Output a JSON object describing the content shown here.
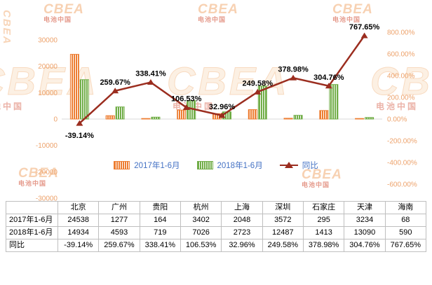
{
  "watermark": {
    "latin": "CBEA",
    "cn": "电池中国"
  },
  "chart_data": {
    "type": "bar+line",
    "categories": [
      "北京",
      "广州",
      "贵阳",
      "杭州",
      "上海",
      "深圳",
      "石家庄",
      "天津",
      "海南"
    ],
    "series": [
      {
        "name": "2017年1-6月",
        "values": [
          24538,
          1277,
          164,
          3402,
          2048,
          3572,
          295,
          3234,
          68
        ]
      },
      {
        "name": "2018年1-6月",
        "values": [
          14934,
          4593,
          719,
          7026,
          2723,
          12487,
          1413,
          13090,
          590
        ]
      }
    ],
    "line_series": {
      "name": "同比",
      "values": [
        -39.14,
        259.67,
        338.41,
        106.53,
        32.96,
        249.58,
        378.98,
        304.76,
        767.65
      ],
      "labels": [
        "-39.14%",
        "259.67%",
        "338.41%",
        "106.53%",
        "32.96%",
        "249.58%",
        "378.98%",
        "304.76%",
        "767.65%"
      ]
    },
    "left_axis": {
      "min": -30000,
      "max": 30000,
      "step": 10000,
      "ticks": [
        "30000",
        "20000",
        "10000",
        "0",
        "-10000",
        "-20000",
        "-30000"
      ]
    },
    "right_axis": {
      "min": -800,
      "max": 800,
      "step": 200,
      "ticks": [
        "800.00%",
        "600.00%",
        "400.00%",
        "200.00%",
        "0.00%",
        "-200.00%",
        "-400.00%",
        "-600.00%"
      ]
    },
    "legend_position": "bottom",
    "grid": "zero-line-only",
    "colors": {
      "series1": "#ED7D31",
      "series2": "#70AD47",
      "line": "#9B2D1F",
      "axis_label": "#EDA26B",
      "legend_text": "#4472C4",
      "data_label": "#000000",
      "grid": "#D9D9D9"
    }
  },
  "legend": {
    "items": [
      {
        "label": "2017年1-6月"
      },
      {
        "label": "2018年1-6月"
      },
      {
        "label": "同比"
      }
    ]
  },
  "table": {
    "corner": "",
    "headers": [
      "北京",
      "广州",
      "贵阳",
      "杭州",
      "上海",
      "深圳",
      "石家庄",
      "天津",
      "海南"
    ],
    "rows": [
      {
        "label": "2017年1-6月",
        "cells": [
          "24538",
          "1277",
          "164",
          "3402",
          "2048",
          "3572",
          "295",
          "3234",
          "68"
        ]
      },
      {
        "label": "2018年1-6月",
        "cells": [
          "14934",
          "4593",
          "719",
          "7026",
          "2723",
          "12487",
          "1413",
          "13090",
          "590"
        ]
      },
      {
        "label": "同比",
        "cells": [
          "-39.14%",
          "259.67%",
          "338.41%",
          "106.53%",
          "32.96%",
          "249.58%",
          "378.98%",
          "304.76%",
          "767.65%"
        ]
      }
    ]
  }
}
